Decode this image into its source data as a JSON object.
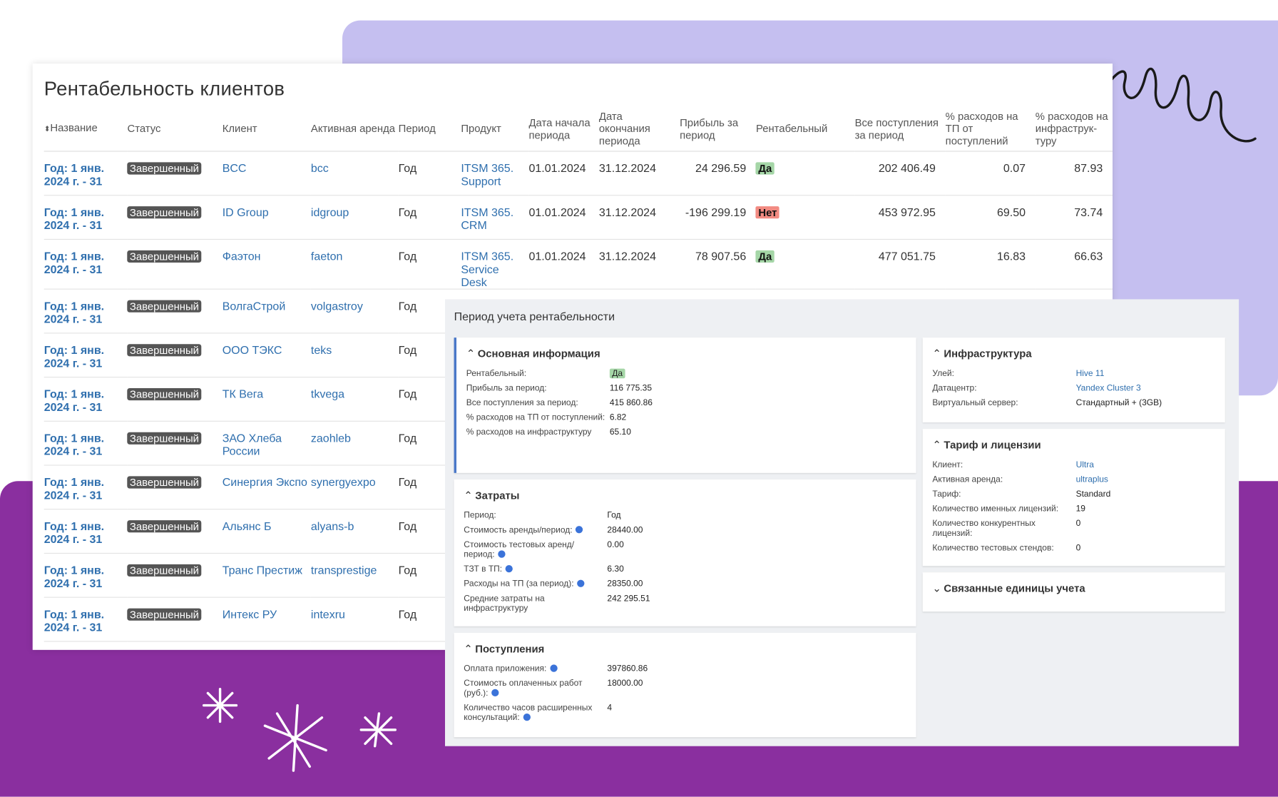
{
  "table": {
    "title": "Рентабельность клиентов",
    "headers": [
      "Название",
      "Статус",
      "Клиент",
      "Активная аренда",
      "Период",
      "Продукт",
      "Дата начала периода",
      "Дата окончания периода",
      "Прибыль за период",
      "Рентабельный",
      "Все поступления за период",
      "% расходов на ТП от поступлений",
      "% расходов на инфраструк-туру"
    ],
    "rows": [
      [
        "Год: 1 янв. 2024 г. - 31",
        "Завершенный",
        "BCC",
        "bcc",
        "Год",
        "ITSM 365. Support",
        "01.01.2024",
        "31.12.2024",
        "24 296.59",
        "Да",
        "202 406.49",
        "0.07",
        "87.93"
      ],
      [
        "Год: 1 янв. 2024 г. - 31",
        "Завершенный",
        "ID Group",
        "idgroup",
        "Год",
        "ITSM 365. CRM",
        "01.01.2024",
        "31.12.2024",
        "-196 299.19",
        "Нет",
        "453 972.95",
        "69.50",
        "73.74"
      ],
      [
        "Год: 1 янв. 2024 г. - 31",
        "Завершенный",
        "Фаэтон",
        "faeton",
        "Год",
        "ITSM 365. Service Desk",
        "01.01.2024",
        "31.12.2024",
        "78 907.56",
        "Да",
        "477 051.75",
        "16.83",
        "66.63"
      ],
      [
        "Год: 1 янв. 2024 г. - 31",
        "Завершенный",
        "ВолгаСтрой",
        "volgastroy",
        "Год"
      ],
      [
        "Год: 1 янв. 2024 г. - 31",
        "Завершенный",
        "ООО ТЭКС",
        "teks",
        "Год"
      ],
      [
        "Год: 1 янв. 2024 г. - 31",
        "Завершенный",
        "ТК Вега",
        "tkvega",
        "Год"
      ],
      [
        "Год: 1 янв. 2024 г. - 31",
        "Завершенный",
        "ЗАО Хлеба России",
        "zaohleb",
        "Год"
      ],
      [
        "Год: 1 янв. 2024 г. - 31",
        "Завершенный",
        "Синергия Экспо",
        "synergyexpo",
        "Год"
      ],
      [
        "Год: 1 янв. 2024 г. - 31",
        "Завершенный",
        "Альянс Б",
        "alyans-b",
        "Год"
      ],
      [
        "Год: 1 янв. 2024 г. - 31",
        "Завершенный",
        "Транс Престиж",
        "transprestige",
        "Год"
      ],
      [
        "Год: 1 янв. 2024 г. - 31",
        "Завершенный",
        "Интекс РУ",
        "intexru",
        "Год"
      ]
    ]
  },
  "panel": {
    "title": "Период учета рентабельности",
    "columns": [
      [
        {
          "title": "Основная информация",
          "highlight": true,
          "fields": [
            {
              "label": "Рентабельный:",
              "value": "Да",
              "badge": true
            },
            {
              "label": "Прибыль за период:",
              "value": "116 775.35"
            },
            {
              "label": "Все поступления за период:",
              "value": "415 860.86"
            },
            {
              "label": "% расходов на ТП от поступлений:",
              "value": "6.82"
            },
            {
              "label": "% расходов на инфраструктуру",
              "value": "65.10"
            }
          ]
        },
        {
          "title": "Затраты",
          "fields": [
            {
              "label": "Период:",
              "value": "Год"
            },
            {
              "label": "Стоимость аренды/период:",
              "value": "28440.00",
              "info": true
            },
            {
              "label": "Стоимость тестовых аренд/период:",
              "value": "0.00",
              "info": true
            },
            {
              "label": "ТЗТ в ТП:",
              "value": "6.30",
              "info": true
            },
            {
              "label": "Расходы на ТП (за период):",
              "value": "28350.00",
              "info": true
            },
            {
              "label": "Средние затраты на инфраструктуру",
              "value": "242 295.51"
            }
          ]
        },
        {
          "title": "Поступления",
          "fields": [
            {
              "label": "Оплата приложения:",
              "value": "397860.86",
              "info": true
            },
            {
              "label": "Стоимость оплаченных работ (руб.):",
              "value": "18000.00",
              "info": true
            },
            {
              "label": "Количество часов расширенных консультаций:",
              "value": "4",
              "info": true
            }
          ]
        }
      ],
      [
        {
          "title": "Инфраструктура",
          "fields": [
            {
              "label": "Улей:",
              "value": "Hive 11",
              "link": true
            },
            {
              "label": "Датацентр:",
              "value": "Yandex Cluster 3",
              "link": true
            },
            {
              "label": "Виртуальный сервер:",
              "value": "Стандартный + (3GB)"
            }
          ]
        },
        {
          "title": "Тариф и лицензии",
          "fields": [
            {
              "label": "Клиент:",
              "value": "Ultra",
              "link": true
            },
            {
              "label": "Активная аренда:",
              "value": "ultraplus",
              "link": true
            },
            {
              "label": "Тариф:",
              "value": "Standard"
            },
            {
              "label": "Количество именных лицензий:",
              "value": "19"
            },
            {
              "label": "Количество конкурентных лицензий:",
              "value": "0"
            },
            {
              "label": "Количество тестовых стендов:",
              "value": "0"
            }
          ]
        },
        {
          "title": "Связанные единицы учета",
          "collapsed": true,
          "fields": []
        }
      ]
    ]
  }
}
